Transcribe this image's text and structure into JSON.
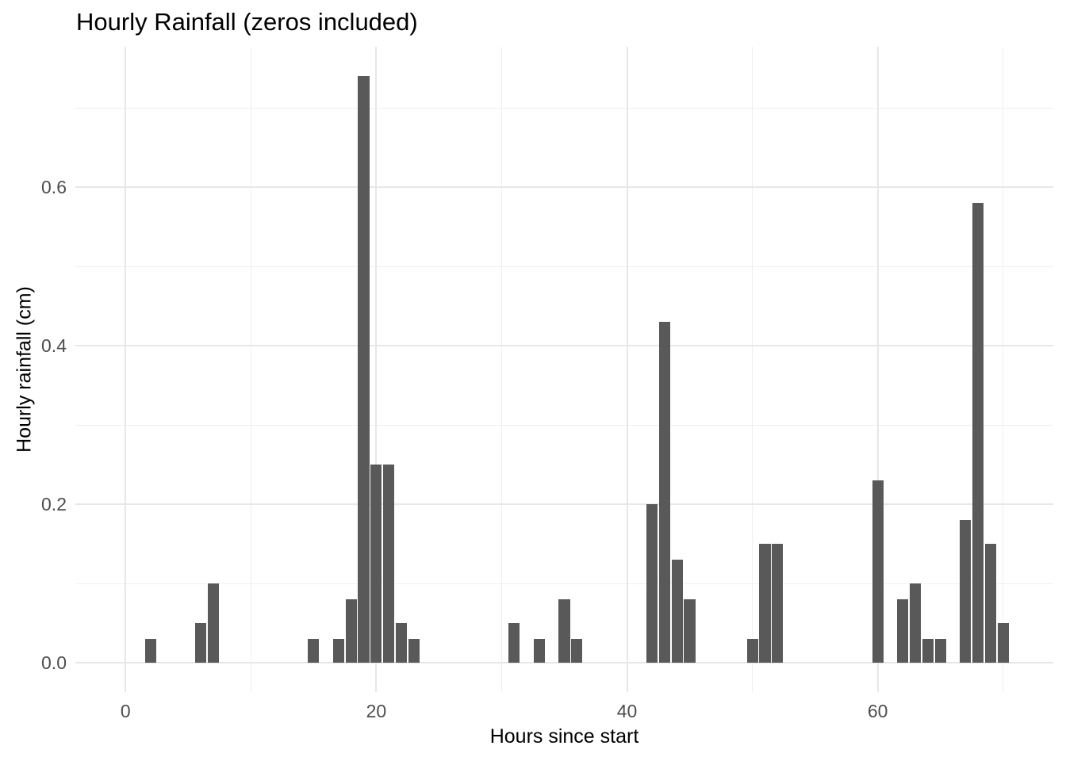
{
  "chart_data": {
    "type": "bar",
    "title": "Hourly Rainfall (zeros included)",
    "xlabel": "Hours since start",
    "ylabel": "Hourly rainfall (cm)",
    "x": [
      0,
      1,
      2,
      3,
      4,
      5,
      6,
      7,
      8,
      9,
      10,
      11,
      12,
      13,
      14,
      15,
      16,
      17,
      18,
      19,
      20,
      21,
      22,
      23,
      24,
      25,
      26,
      27,
      28,
      29,
      30,
      31,
      32,
      33,
      34,
      35,
      36,
      37,
      38,
      39,
      40,
      41,
      42,
      43,
      44,
      45,
      46,
      47,
      48,
      49,
      50,
      51,
      52,
      53,
      54,
      55,
      56,
      57,
      58,
      59,
      60,
      61,
      62,
      63,
      64,
      65,
      66,
      67,
      68,
      69,
      70
    ],
    "values": [
      0,
      0,
      0.03,
      0,
      0,
      0,
      0.05,
      0.1,
      0,
      0,
      0,
      0,
      0,
      0,
      0,
      0.03,
      0,
      0.03,
      0.08,
      0.74,
      0.25,
      0.25,
      0.05,
      0.03,
      0,
      0,
      0,
      0,
      0,
      0,
      0,
      0.05,
      0,
      0.03,
      0,
      0.08,
      0.03,
      0,
      0,
      0,
      0,
      0,
      0.2,
      0.43,
      0.13,
      0.08,
      0,
      0,
      0,
      0,
      0.03,
      0.15,
      0.15,
      0,
      0,
      0,
      0,
      0,
      0,
      0,
      0.23,
      0,
      0.08,
      0.1,
      0.03,
      0.03,
      0,
      0.18,
      0.58,
      0.15,
      0.05
    ],
    "x_ticks": [
      0,
      20,
      40,
      60
    ],
    "x_tick_labels": [
      "0",
      "20",
      "40",
      "60"
    ],
    "x_minor_ticks": [
      10,
      30,
      50,
      70
    ],
    "y_ticks": [
      0.0,
      0.2,
      0.4,
      0.6
    ],
    "y_tick_labels": [
      "0.0",
      "0.2",
      "0.4",
      "0.6"
    ],
    "y_minor_ticks": [
      0.1,
      0.3,
      0.5,
      0.7
    ],
    "xlim": [
      -4,
      74
    ],
    "ylim": [
      -0.037,
      0.777
    ],
    "bar_width": 0.9,
    "grid": "major-and-minor",
    "legend": "none",
    "colors": {
      "bar": "#595959",
      "grid_major": "#e7e7e7",
      "grid_minor": "#efefef",
      "tick_text": "#4d4d4d",
      "title_text": "#000000",
      "background": "#ffffff"
    }
  }
}
